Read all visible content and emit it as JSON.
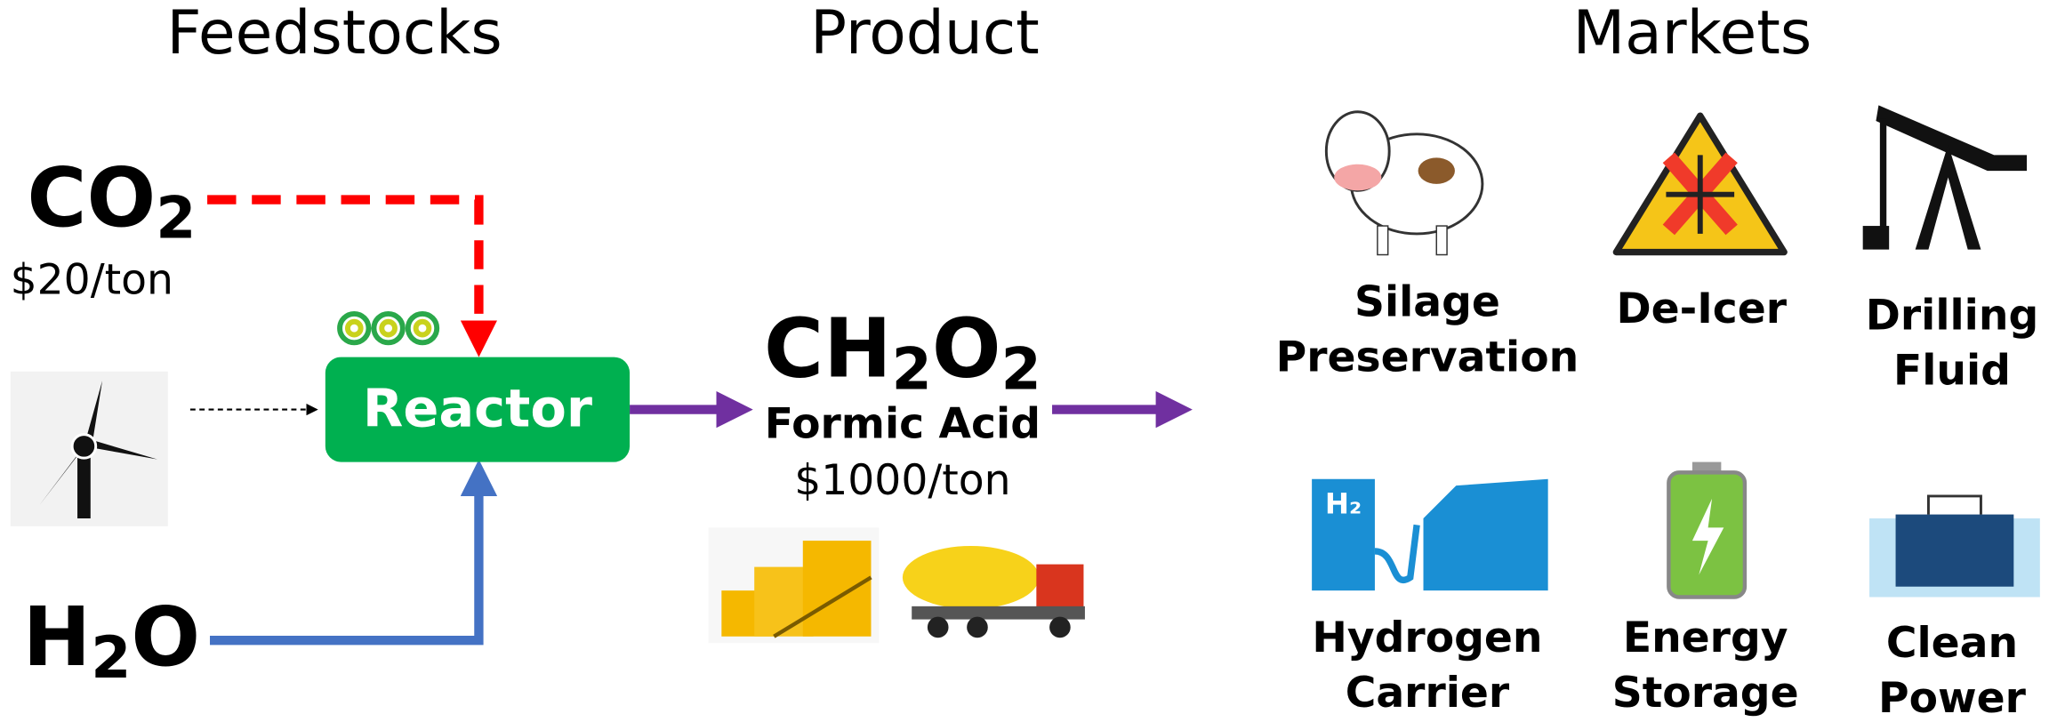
{
  "headers": [
    "Feedstocks",
    "Product",
    "Markets"
  ],
  "feedstocks": {
    "co2": {
      "formula": [
        "CO",
        "2"
      ],
      "price": "$20/ton"
    },
    "h2o": {
      "formula": [
        "H",
        "2",
        "O"
      ]
    }
  },
  "reactor": {
    "label": "Reactor"
  },
  "product": {
    "formula": [
      "CH",
      "2",
      "O",
      "2"
    ],
    "name": "Formic Acid",
    "price": "$1000/ton"
  },
  "markets": [
    {
      "lines": [
        "Silage",
        "Preservation"
      ]
    },
    {
      "lines": [
        "De-Icer"
      ]
    },
    {
      "lines": [
        "Drilling",
        "Fluid"
      ]
    },
    {
      "lines": [
        "Hydrogen",
        "Carrier"
      ]
    },
    {
      "lines": [
        "Energy",
        "Storage"
      ]
    },
    {
      "lines": [
        "Clean",
        "Power"
      ]
    }
  ]
}
